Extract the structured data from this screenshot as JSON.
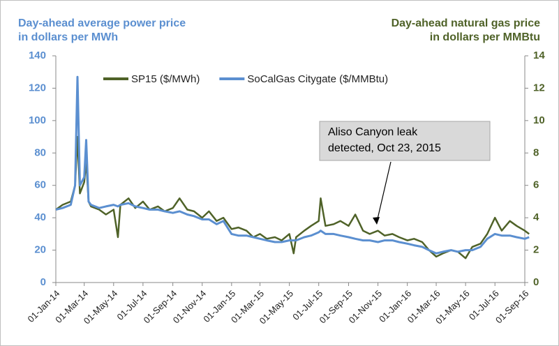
{
  "chart_data": {
    "type": "line",
    "y_title": [
      "Day-ahead average power price",
      "in dollars per MWh"
    ],
    "y2_title": [
      "Day-ahead natural gas price",
      "in dollars per MMBtu"
    ],
    "annotation": [
      "Aliso Canyon leak",
      "detected, Oct 23, 2015"
    ],
    "xlim": [
      "2014-01-01",
      "2016-09-15"
    ],
    "xticks": [
      {
        "value": "2014-01-01",
        "label": "01-Jan-14"
      },
      {
        "value": "2014-03-01",
        "label": "01-Mar-14"
      },
      {
        "value": "2014-05-01",
        "label": "01-May-14"
      },
      {
        "value": "2014-07-01",
        "label": "01-Jul-14"
      },
      {
        "value": "2014-09-01",
        "label": "01-Sep-14"
      },
      {
        "value": "2014-11-01",
        "label": "01-Nov-14"
      },
      {
        "value": "2015-01-01",
        "label": "01-Jan-15"
      },
      {
        "value": "2015-03-01",
        "label": "01-Mar-15"
      },
      {
        "value": "2015-05-01",
        "label": "01-May-15"
      },
      {
        "value": "2015-07-01",
        "label": "01-Jul-15"
      },
      {
        "value": "2015-09-01",
        "label": "01-Sep-15"
      },
      {
        "value": "2015-11-01",
        "label": "01-Nov-15"
      },
      {
        "value": "2016-01-01",
        "label": "01-Jan-16"
      },
      {
        "value": "2016-03-01",
        "label": "01-Mar-16"
      },
      {
        "value": "2016-05-01",
        "label": "01-May-16"
      },
      {
        "value": "2016-07-01",
        "label": "01-Jul-16"
      },
      {
        "value": "2016-09-01",
        "label": "01-Sep-16"
      }
    ],
    "ylim": [
      0,
      140
    ],
    "yticks": [
      0,
      20,
      40,
      60,
      80,
      100,
      120,
      140
    ],
    "y2lim": [
      0,
      14
    ],
    "y2ticks": [
      0,
      2,
      4,
      6,
      8,
      10,
      12,
      14
    ],
    "x": [
      "2014-01-01",
      "2014-01-15",
      "2014-02-01",
      "2014-02-10",
      "2014-02-15",
      "2014-02-20",
      "2014-03-01",
      "2014-03-05",
      "2014-03-10",
      "2014-03-15",
      "2014-04-01",
      "2014-04-15",
      "2014-05-01",
      "2014-05-10",
      "2014-05-15",
      "2014-06-01",
      "2014-06-15",
      "2014-07-01",
      "2014-07-15",
      "2014-08-01",
      "2014-08-15",
      "2014-09-01",
      "2014-09-15",
      "2014-10-01",
      "2014-10-15",
      "2014-11-01",
      "2014-11-15",
      "2014-12-01",
      "2014-12-15",
      "2015-01-01",
      "2015-01-15",
      "2015-02-01",
      "2015-02-15",
      "2015-03-01",
      "2015-03-15",
      "2015-04-01",
      "2015-04-15",
      "2015-05-01",
      "2015-05-10",
      "2015-05-15",
      "2015-06-01",
      "2015-06-15",
      "2015-07-01",
      "2015-07-05",
      "2015-07-15",
      "2015-08-01",
      "2015-08-15",
      "2015-09-01",
      "2015-09-15",
      "2015-10-01",
      "2015-10-15",
      "2015-11-01",
      "2015-11-15",
      "2015-12-01",
      "2015-12-15",
      "2016-01-01",
      "2016-01-15",
      "2016-02-01",
      "2016-02-15",
      "2016-03-01",
      "2016-03-15",
      "2016-04-01",
      "2016-04-15",
      "2016-05-01",
      "2016-05-15",
      "2016-06-01",
      "2016-06-15",
      "2016-07-01",
      "2016-07-15",
      "2016-08-01",
      "2016-08-15",
      "2016-09-01",
      "2016-09-10"
    ],
    "series": [
      {
        "name": "SP15 ($/MWh)",
        "color": "#4f6228",
        "values": [
          45,
          48,
          50,
          60,
          90,
          55,
          62,
          75,
          50,
          47,
          45,
          42,
          45,
          28,
          48,
          52,
          46,
          50,
          45,
          47,
          44,
          46,
          52,
          45,
          44,
          40,
          44,
          38,
          40,
          33,
          34,
          32,
          28,
          30,
          27,
          28,
          26,
          30,
          18,
          28,
          32,
          35,
          38,
          52,
          35,
          36,
          38,
          35,
          42,
          32,
          30,
          32,
          29,
          30,
          28,
          26,
          27,
          25,
          20,
          16,
          18,
          20,
          19,
          15,
          22,
          24,
          30,
          40,
          32,
          38,
          35,
          32,
          30
        ]
      },
      {
        "name": "SoCalGas Citygate ($/MMBtu)",
        "color": "#5b8fd0",
        "axis": "y2",
        "values": [
          4.5,
          4.6,
          4.8,
          6.0,
          12.7,
          6.0,
          6.5,
          8.8,
          5.0,
          4.8,
          4.6,
          4.7,
          4.8,
          4.7,
          4.8,
          4.9,
          4.7,
          4.6,
          4.5,
          4.5,
          4.4,
          4.3,
          4.4,
          4.2,
          4.1,
          3.9,
          3.9,
          3.6,
          3.8,
          3.0,
          2.9,
          2.9,
          2.8,
          2.7,
          2.6,
          2.5,
          2.5,
          2.6,
          2.6,
          2.6,
          2.8,
          2.9,
          3.1,
          3.2,
          3.0,
          3.0,
          2.9,
          2.8,
          2.7,
          2.6,
          2.6,
          2.5,
          2.6,
          2.6,
          2.5,
          2.4,
          2.3,
          2.2,
          2.0,
          1.8,
          1.9,
          2.0,
          1.9,
          2.0,
          2.0,
          2.2,
          2.7,
          3.0,
          2.9,
          2.9,
          2.8,
          2.7,
          2.8
        ]
      }
    ]
  }
}
